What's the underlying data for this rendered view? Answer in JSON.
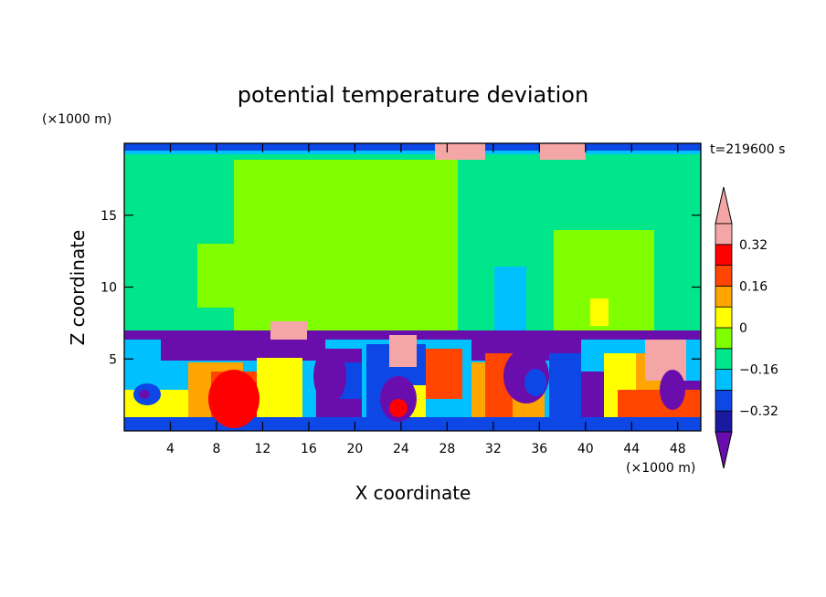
{
  "chart_data": {
    "type": "heatmap",
    "title": "potential temperature deviation",
    "xlabel": "X coordinate",
    "ylabel": "Z coordinate",
    "x_units": "(×1000 m)",
    "y_units": "(×1000 m)",
    "time_label": "t=219600 s",
    "xlim": [
      0,
      50
    ],
    "ylim": [
      0,
      20
    ],
    "x_ticks": [
      4,
      8,
      12,
      16,
      20,
      24,
      28,
      32,
      36,
      40,
      44,
      48
    ],
    "y_ticks": [
      5,
      10,
      15
    ],
    "x_tick_labels": [
      "4",
      "8",
      "12",
      "16",
      "20",
      "24",
      "28",
      "32",
      "36",
      "40",
      "44",
      "48"
    ],
    "y_tick_labels": [
      "5",
      "10",
      "15"
    ],
    "colorbar": {
      "levels": [
        -0.4,
        -0.32,
        -0.24,
        -0.16,
        -0.08,
        0,
        0.08,
        0.16,
        0.24,
        0.32,
        0.4
      ],
      "labels": [
        "0.32",
        "0.16",
        "0",
        "−0.16",
        "−0.32"
      ],
      "label_values": [
        0.32,
        0.16,
        0,
        -0.16,
        -0.32
      ],
      "colors": [
        "#6a0dad",
        "#1a1aa0",
        "#0d47e6",
        "#00c0ff",
        "#00e68a",
        "#7fff00",
        "#ffff00",
        "#ffa500",
        "#ff4500",
        "#ff0000",
        "#f4a6a6"
      ],
      "extend": "both"
    }
  }
}
